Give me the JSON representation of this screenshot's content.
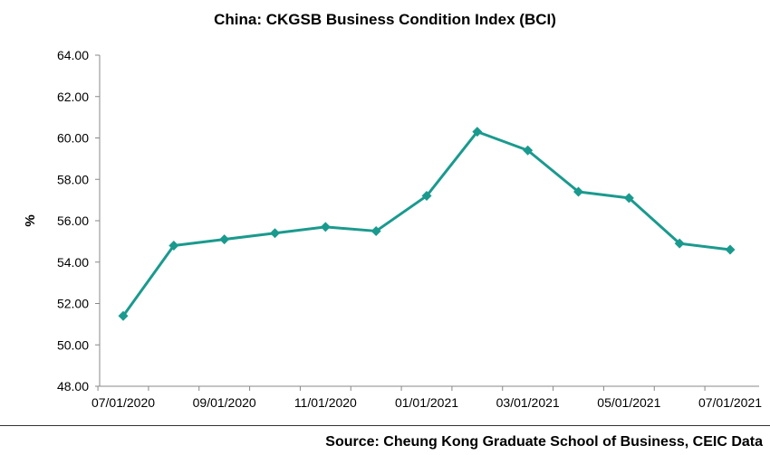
{
  "title": "China: CKGSB Business Condition Index (BCI)",
  "source": "Source: Cheung Kong Graduate School of Business, CEIC Data",
  "colors": {
    "line": "#1a9a8e",
    "axis": "#888888",
    "text": "#000000"
  },
  "chart_data": {
    "type": "line",
    "title": "China: CKGSB Business Condition Index (BCI)",
    "xlabel": "",
    "ylabel": "%",
    "ylim": [
      48,
      64
    ],
    "grid": false,
    "y_ticks": [
      "48.00",
      "50.00",
      "52.00",
      "54.00",
      "56.00",
      "58.00",
      "60.00",
      "62.00",
      "64.00"
    ],
    "x_ticks": [
      "07/01/2020",
      "09/01/2020",
      "11/01/2020",
      "01/01/2021",
      "03/01/2021",
      "05/01/2021",
      "07/01/2021"
    ],
    "x": [
      "2020-07",
      "2020-08",
      "2020-09",
      "2020-10",
      "2020-11",
      "2020-12",
      "2021-01",
      "2021-02",
      "2021-03",
      "2021-04",
      "2021-05",
      "2021-06",
      "2021-07"
    ],
    "series": [
      {
        "values": [
          51.4,
          54.8,
          55.1,
          55.4,
          55.7,
          55.5,
          57.2,
          60.3,
          59.4,
          57.4,
          57.1,
          54.9,
          54.6
        ]
      }
    ]
  }
}
